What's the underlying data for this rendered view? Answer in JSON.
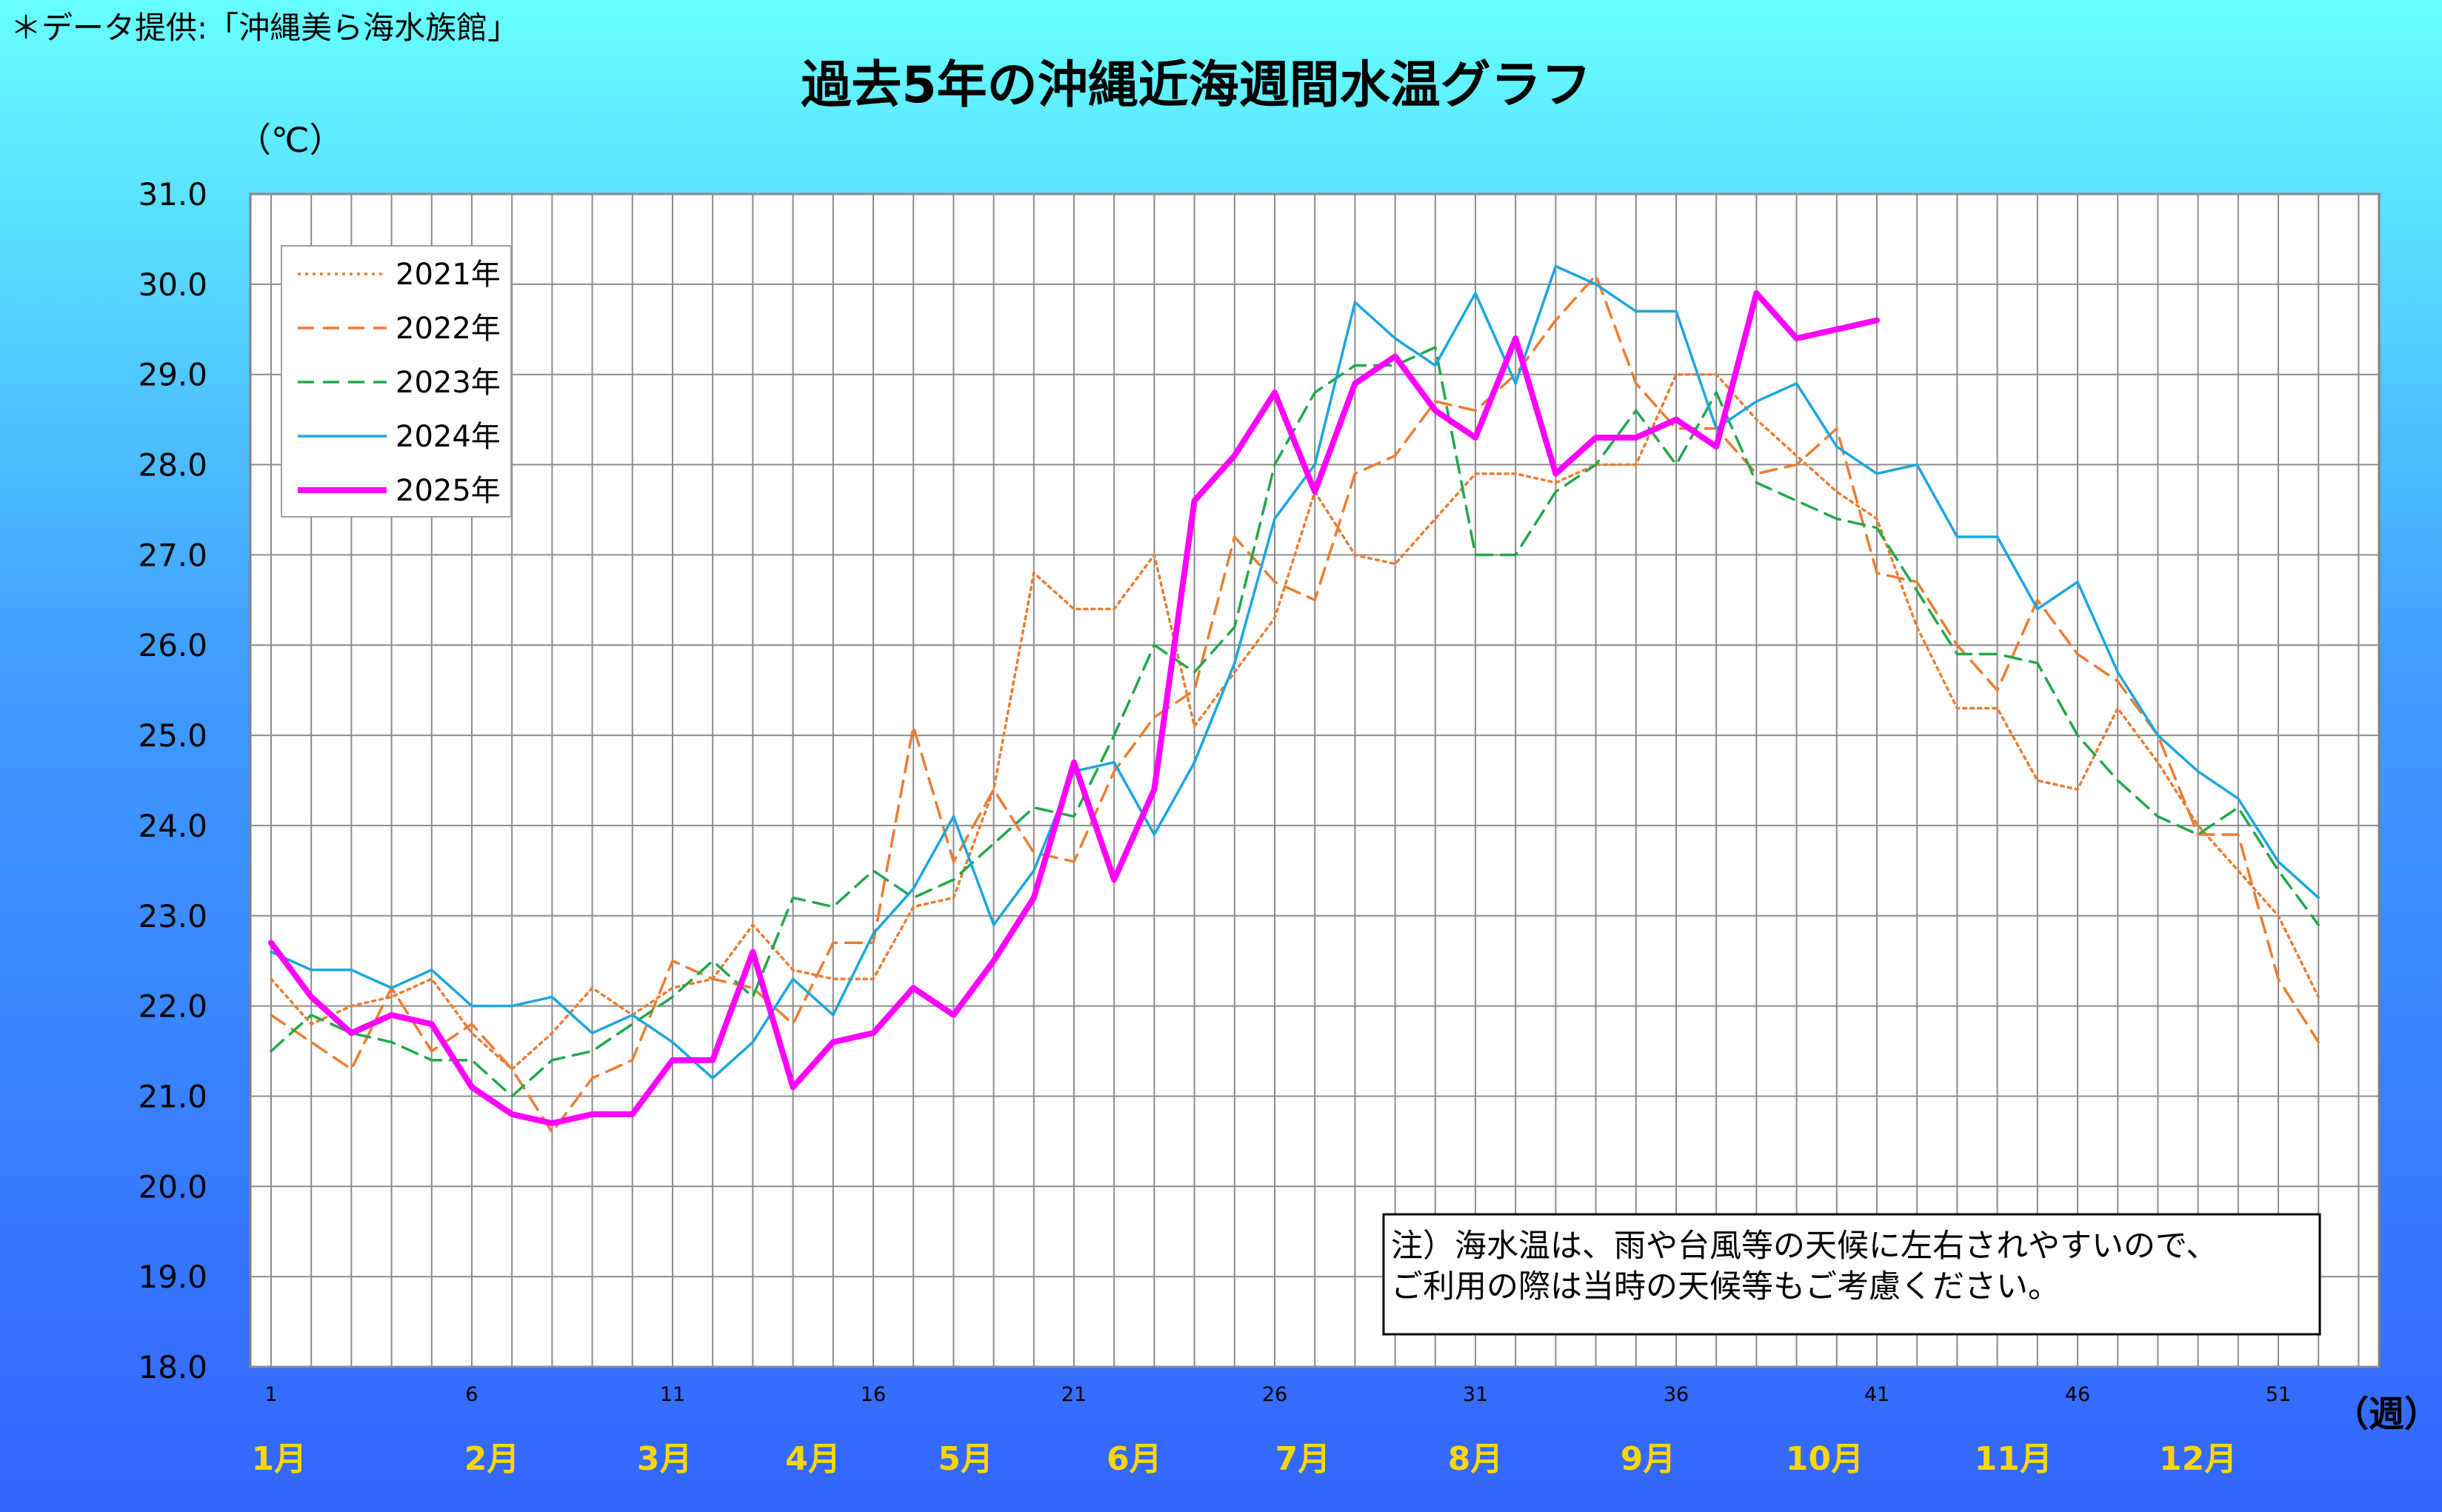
{
  "credit": "＊データ提供:「沖縄美ら海水族館」",
  "title": "過去5年の沖縄近海週間水温グラフ",
  "note": {
    "line1": "注）海水温は、雨や台風等の天候に左右されやすいので、",
    "line2": "ご利用の際は当時の天候等もご考慮ください。"
  },
  "chart_data": {
    "type": "line",
    "ylabel": "（℃）",
    "xlabel": "（週）",
    "ylim": [
      18.0,
      31.0
    ],
    "ytick_step": 1.0,
    "xlim": [
      1,
      53
    ],
    "x_tick_labels": [
      "1",
      "6",
      "11",
      "16",
      "21",
      "26",
      "31",
      "36",
      "41",
      "46",
      "51"
    ],
    "months": [
      {
        "label": "1月",
        "week": 1.2
      },
      {
        "label": "2月",
        "week": 6.5
      },
      {
        "label": "3月",
        "week": 10.8
      },
      {
        "label": "4月",
        "week": 14.5
      },
      {
        "label": "5月",
        "week": 18.3
      },
      {
        "label": "6月",
        "week": 22.5
      },
      {
        "label": "7月",
        "week": 26.7
      },
      {
        "label": "8月",
        "week": 31.0
      },
      {
        "label": "9月",
        "week": 35.3
      },
      {
        "label": "10月",
        "week": 39.7
      },
      {
        "label": "11月",
        "week": 44.4
      },
      {
        "label": "12月",
        "week": 49.0
      }
    ],
    "grid": true,
    "legend_position": "top-left",
    "series": [
      {
        "name": "2021年",
        "color": "#ed7d31",
        "style": "dotted",
        "start_week": 1,
        "values": [
          22.3,
          21.8,
          22.0,
          22.1,
          22.3,
          21.7,
          21.3,
          21.7,
          22.2,
          21.9,
          22.2,
          22.3,
          22.9,
          22.4,
          22.3,
          22.3,
          23.1,
          23.2,
          24.4,
          26.8,
          26.4,
          26.4,
          27.0,
          25.1,
          25.7,
          26.3,
          27.7,
          27.0,
          26.9,
          27.4,
          27.9,
          27.9,
          27.8,
          28.0,
          28.0,
          29.0,
          29.0,
          28.5,
          28.1,
          27.7,
          27.4,
          26.2,
          25.3,
          25.3,
          24.5,
          24.4,
          25.3,
          24.7,
          24.0,
          23.5,
          23.0,
          22.1
        ]
      },
      {
        "name": "2022年",
        "color": "#ed7d31",
        "style": "dashed",
        "start_week": 1,
        "values": [
          21.9,
          21.6,
          21.3,
          22.2,
          21.5,
          21.8,
          21.3,
          20.6,
          21.2,
          21.4,
          22.5,
          22.3,
          22.2,
          21.8,
          22.7,
          22.7,
          25.1,
          23.6,
          24.4,
          23.7,
          23.6,
          24.6,
          25.2,
          25.5,
          27.2,
          26.7,
          26.5,
          27.9,
          28.1,
          28.7,
          28.6,
          29.0,
          29.6,
          30.1,
          28.9,
          28.4,
          28.4,
          27.9,
          28.0,
          28.4,
          26.8,
          26.7,
          26.0,
          25.5,
          26.5,
          25.9,
          25.6,
          25.0,
          23.9,
          23.9,
          22.3,
          21.6
        ]
      },
      {
        "name": "2023年",
        "color": "#21a84a",
        "style": "dashed",
        "start_week": 1,
        "values": [
          21.5,
          21.9,
          21.7,
          21.6,
          21.4,
          21.4,
          21.0,
          21.4,
          21.5,
          21.8,
          22.1,
          22.5,
          22.1,
          23.2,
          23.1,
          23.5,
          23.2,
          23.4,
          23.8,
          24.2,
          24.1,
          25.0,
          26.0,
          25.7,
          26.2,
          28.0,
          28.8,
          29.1,
          29.1,
          29.3,
          27.0,
          27.0,
          27.7,
          28.0,
          28.6,
          28.0,
          28.8,
          27.8,
          27.6,
          27.4,
          27.3,
          26.6,
          25.9,
          25.9,
          25.8,
          25.0,
          24.5,
          24.1,
          23.9,
          24.2,
          23.5,
          22.9
        ]
      },
      {
        "name": "2024年",
        "color": "#1aa6e0",
        "style": "solid",
        "start_week": 1,
        "values": [
          22.6,
          22.4,
          22.4,
          22.2,
          22.4,
          22.0,
          22.0,
          22.1,
          21.7,
          21.9,
          21.6,
          21.2,
          21.6,
          22.3,
          21.9,
          22.8,
          23.3,
          24.1,
          22.9,
          23.5,
          24.6,
          24.7,
          23.9,
          24.7,
          25.8,
          27.4,
          28.0,
          29.8,
          29.4,
          29.1,
          29.9,
          28.9,
          30.2,
          30.0,
          29.7,
          29.7,
          28.4,
          28.7,
          28.9,
          28.2,
          27.9,
          28.0,
          27.2,
          27.2,
          26.4,
          26.7,
          25.7,
          25.0,
          24.6,
          24.3,
          23.6,
          23.2
        ]
      },
      {
        "name": "2025年",
        "color": "#ff00ff",
        "style": "solid",
        "bold": true,
        "start_week": 1,
        "values": [
          22.7,
          22.1,
          21.7,
          21.9,
          21.8,
          21.1,
          20.8,
          20.7,
          20.8,
          20.8,
          21.4,
          21.4,
          22.6,
          21.1,
          21.6,
          21.7,
          22.2,
          21.9,
          22.5,
          23.2,
          24.7,
          23.4,
          24.4,
          27.6,
          28.1,
          28.8,
          27.7,
          28.9,
          29.2,
          28.6,
          28.3,
          29.4,
          27.9,
          28.3,
          28.3,
          28.5,
          28.2,
          29.9,
          29.4,
          null,
          29.6
        ]
      }
    ]
  }
}
